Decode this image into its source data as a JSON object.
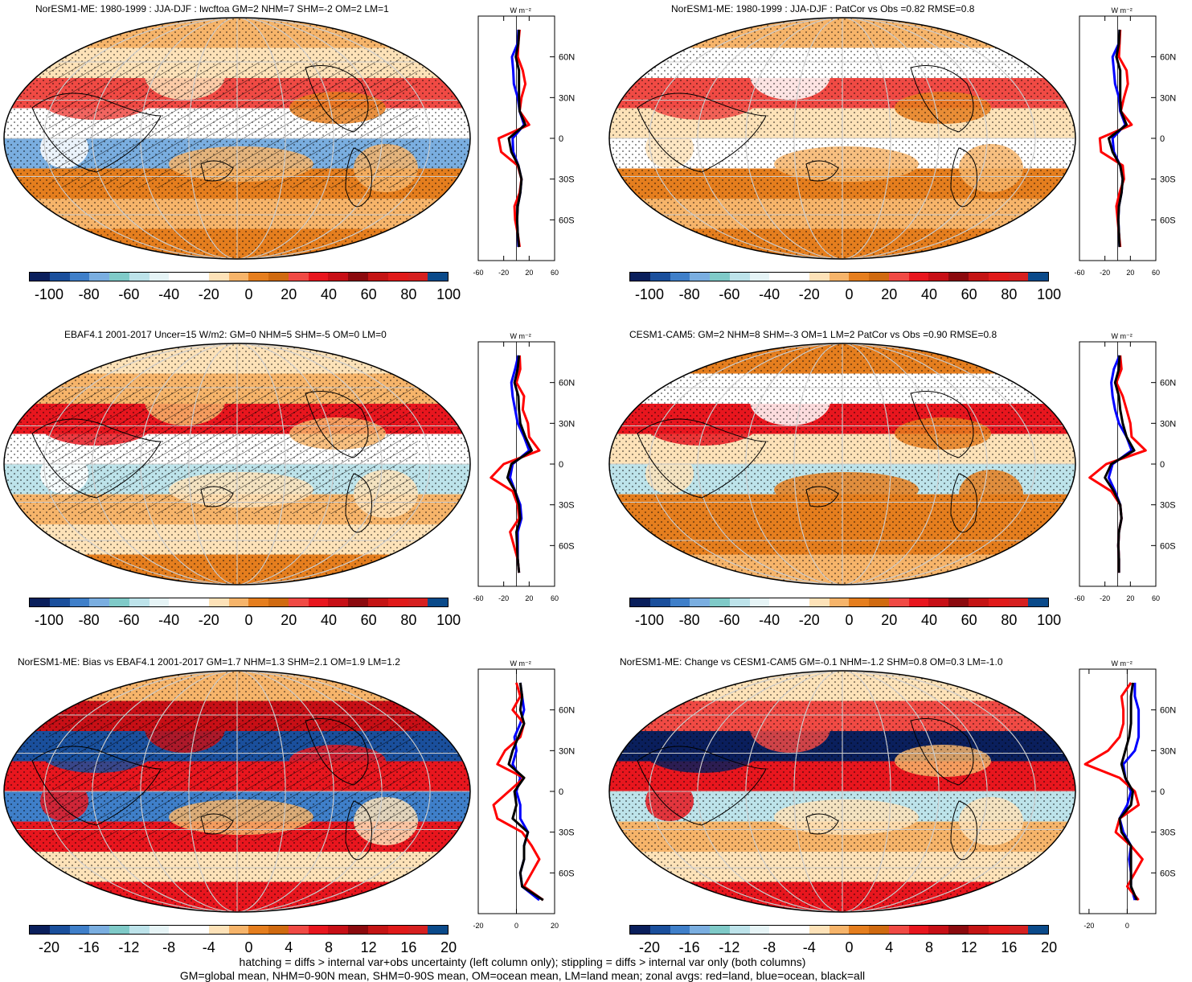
{
  "panels": [
    {
      "title": "NorESM1-ME: 1980-1999 : JJA-DJF : lwcftoa GM=2 NHM=7 SHM=-2 OM=2 LM=1",
      "cb_labels": [
        "-100",
        "-80",
        "-60",
        "-40",
        "-20",
        "0",
        "20",
        "40",
        "60",
        "80",
        "100"
      ],
      "hatch": true,
      "xticks": [
        "-60",
        "-20",
        "20",
        "60"
      ],
      "unit": "W m⁻²"
    },
    {
      "title": "NorESM1-ME: 1980-1999 : JJA-DJF : PatCor vs Obs =0.82 RMSE=0.8",
      "cb_labels": [
        "-100",
        "-80",
        "-60",
        "-40",
        "-20",
        "0",
        "20",
        "40",
        "60",
        "80",
        "100"
      ],
      "hatch": false,
      "xticks": [
        "-60",
        "-20",
        "20",
        "60"
      ],
      "unit": "W m⁻²"
    },
    {
      "title": "EBAF4.1 2001-2017 Uncer=15 W/m2: GM=0 NHM=5 SHM=-5 OM=0 LM=0",
      "cb_labels": [
        "-100",
        "-80",
        "-60",
        "-40",
        "-20",
        "0",
        "20",
        "40",
        "60",
        "80",
        "100"
      ],
      "hatch": true,
      "xticks": [
        "-60",
        "-20",
        "20",
        "60"
      ],
      "unit": "W m⁻²"
    },
    {
      "title": "CESM1-CAM5: GM=2 NHM=8 SHM=-3 OM=1 LM=2 PatCor vs Obs =0.90 RMSE=0.8",
      "cb_labels": [
        "-100",
        "-80",
        "-60",
        "-40",
        "-20",
        "0",
        "20",
        "40",
        "60",
        "80",
        "100"
      ],
      "hatch": false,
      "xticks": [
        "-60",
        "-20",
        "20",
        "60"
      ],
      "unit": "W m⁻²"
    },
    {
      "title": "NorESM1-ME: Bias vs EBAF4.1 2001-2017 GM=1.7 NHM=1.3 SHM=2.1 OM=1.9 LM=1.2",
      "cb_labels": [
        "-20",
        "-16",
        "-12",
        "-8",
        "-4",
        "0",
        "4",
        "8",
        "12",
        "16",
        "20"
      ],
      "hatch": true,
      "xticks": [
        "-20",
        "0",
        "20"
      ],
      "unit": "W m⁻²"
    },
    {
      "title": "NorESM1-ME: Change vs CESM1-CAM5 GM=-0.1 NHM=-1.2 SHM=0.8 OM=0.3 LM=-1.0",
      "cb_labels": [
        "-20",
        "-16",
        "-12",
        "-8",
        "-4",
        "0",
        "4",
        "8",
        "12",
        "16",
        "20"
      ],
      "hatch": false,
      "xticks": [
        "-20",
        "0"
      ],
      "unit": "W m⁻²"
    }
  ],
  "lat_labels": [
    "60N",
    "30N",
    "0",
    "30S",
    "60S"
  ],
  "palette": [
    "#0a1f5c",
    "#1a4f9c",
    "#3f7fc9",
    "#7aaee0",
    "#7fcac8",
    "#bde3ea",
    "#e6f4f6",
    "#ffffff",
    "#ffffff",
    "#fde2b8",
    "#f6b46a",
    "#e57e1e",
    "#d06a10",
    "#f04a44",
    "#e8161e",
    "#c70f16",
    "#8b0a0e",
    "#c41414",
    "#e01a1a",
    "#d62020",
    "#0a4a8a"
  ],
  "zonal_colors": {
    "land": "#ff0000",
    "ocean": "#0000ff",
    "all": "#000000"
  },
  "chart_data": [
    {
      "type": "heatmap",
      "title": "NorESM1-ME: 1980-1999 : JJA-DJF : lwcftoa GM=2 NHM=7 SHM=-2 OM=2 LM=1",
      "clim": [
        -100,
        100
      ],
      "zonal": {
        "lat": [
          80,
          70,
          60,
          50,
          40,
          30,
          20,
          10,
          0,
          -10,
          -20,
          -30,
          -40,
          -50,
          -60,
          -70,
          -80
        ],
        "land": [
          5,
          3,
          2,
          10,
          14,
          8,
          5,
          20,
          -28,
          -24,
          2,
          8,
          5,
          -3,
          -2,
          2,
          5
        ],
        "ocean": [
          3,
          2,
          -7,
          -5,
          -4,
          2,
          5,
          12,
          -6,
          -5,
          3,
          8,
          6,
          2,
          1,
          2,
          3
        ],
        "all": [
          4,
          3,
          -1,
          4,
          4,
          4,
          5,
          14,
          -12,
          -8,
          3,
          8,
          6,
          2,
          1,
          2,
          4
        ]
      },
      "xlim": [
        -60,
        60
      ]
    },
    {
      "type": "heatmap",
      "title": "NorESM1-ME: 1980-1999 : JJA-DJF : PatCor vs Obs =0.82 RMSE=0.8",
      "clim": [
        -100,
        100
      ],
      "zonal": {
        "lat": [
          80,
          70,
          60,
          50,
          40,
          30,
          20,
          10,
          0,
          -10,
          -20,
          -30,
          -40,
          -50,
          -60,
          -70,
          -80
        ],
        "land": [
          4,
          3,
          2,
          14,
          16,
          10,
          5,
          22,
          -28,
          -26,
          8,
          10,
          3,
          -2,
          0,
          2,
          4
        ],
        "ocean": [
          3,
          2,
          -8,
          -6,
          -4,
          2,
          4,
          12,
          -8,
          -6,
          4,
          8,
          6,
          2,
          1,
          2,
          3
        ],
        "all": [
          3,
          2,
          -2,
          4,
          4,
          4,
          5,
          14,
          -14,
          -8,
          4,
          8,
          6,
          2,
          1,
          2,
          3
        ]
      },
      "xlim": [
        -60,
        60
      ]
    },
    {
      "type": "heatmap",
      "title": "EBAF4.1 2001-2017 Uncer=15 W/m2: GM=0 NHM=5 SHM=-5 OM=0 LM=0",
      "clim": [
        -100,
        100
      ],
      "zonal": {
        "lat": [
          80,
          70,
          60,
          50,
          40,
          30,
          20,
          10,
          0,
          -10,
          -20,
          -30,
          -40,
          -50,
          -60,
          -70,
          -80
        ],
        "land": [
          5,
          6,
          0,
          12,
          10,
          18,
          20,
          36,
          -20,
          -40,
          -6,
          2,
          4,
          -10,
          -4,
          2,
          4
        ],
        "ocean": [
          3,
          -2,
          -8,
          -6,
          -2,
          2,
          12,
          20,
          -6,
          -10,
          -2,
          6,
          8,
          2,
          2,
          2,
          4
        ],
        "all": [
          4,
          2,
          -3,
          3,
          4,
          6,
          14,
          24,
          -8,
          -14,
          -2,
          4,
          6,
          0,
          1,
          2,
          4
        ]
      },
      "xlim": [
        -60,
        60
      ]
    },
    {
      "type": "heatmap",
      "title": "CESM1-CAM5: GM=2 NHM=8 SHM=-3 OM=1 LM=2 PatCor vs Obs =0.90 RMSE=0.8",
      "clim": [
        -100,
        100
      ],
      "zonal": {
        "lat": [
          80,
          70,
          60,
          50,
          40,
          30,
          20,
          10,
          0,
          -10,
          -20,
          -30,
          -40,
          -50,
          -60,
          -70,
          -80
        ],
        "land": [
          4,
          6,
          -2,
          8,
          14,
          20,
          22,
          44,
          -18,
          -44,
          -10,
          4,
          6,
          2,
          1,
          2,
          2
        ],
        "ocean": [
          3,
          -6,
          -10,
          -8,
          -4,
          2,
          14,
          22,
          -8,
          -14,
          -4,
          4,
          6,
          2,
          1,
          2,
          2
        ],
        "all": [
          3,
          2,
          -4,
          2,
          4,
          8,
          14,
          26,
          -10,
          -20,
          -6,
          4,
          6,
          2,
          1,
          2,
          2
        ]
      },
      "xlim": [
        -60,
        60
      ]
    },
    {
      "type": "heatmap",
      "title": "NorESM1-ME: Bias vs EBAF4.1 2001-2017 GM=1.7 NHM=1.3 SHM=2.1 OM=1.9 LM=1.2",
      "clim": [
        -20,
        20
      ],
      "zonal": {
        "lat": [
          80,
          70,
          60,
          50,
          40,
          30,
          20,
          10,
          0,
          -10,
          -20,
          -30,
          -40,
          -50,
          -60,
          -70,
          -80
        ],
        "land": [
          0,
          2,
          -2,
          4,
          2,
          -6,
          -10,
          4,
          -4,
          -12,
          -10,
          3,
          8,
          12,
          8,
          4,
          14
        ],
        "ocean": [
          2,
          3,
          4,
          2,
          -1,
          0,
          -2,
          2,
          0,
          2,
          2,
          6,
          4,
          4,
          2,
          3,
          12
        ],
        "all": [
          2,
          3,
          2,
          4,
          1,
          -2,
          -4,
          4,
          -1,
          0,
          -2,
          6,
          4,
          4,
          2,
          3,
          14
        ]
      },
      "xlim": [
        -20,
        20
      ]
    },
    {
      "type": "heatmap",
      "title": "NorESM1-ME: Change vs CESM1-CAM5 GM=-0.1 NHM=-1.2 SHM=0.8 OM=0.3 LM=-1.0",
      "clim": [
        -20,
        20
      ],
      "zonal": {
        "lat": [
          80,
          70,
          60,
          50,
          40,
          30,
          20,
          10,
          0,
          -10,
          -20,
          -30,
          -40,
          -50,
          -60,
          -70,
          -80
        ],
        "land": [
          2,
          -3,
          -2,
          -2,
          -4,
          -10,
          -22,
          -4,
          4,
          6,
          -4,
          -6,
          2,
          8,
          4,
          0,
          6
        ],
        "ocean": [
          4,
          4,
          6,
          6,
          6,
          4,
          -2,
          -1,
          2,
          0,
          -4,
          -2,
          2,
          1,
          2,
          2,
          4
        ],
        "all": [
          3,
          2,
          2,
          2,
          1,
          -1,
          -3,
          -1,
          3,
          2,
          -4,
          -3,
          2,
          2,
          2,
          2,
          5
        ]
      },
      "xlim": [
        -25,
        15
      ]
    }
  ],
  "footer": {
    "line1": "hatching = diffs > internal var+obs uncertainty (left column only); stippling = diffs > internal var only (both columns)",
    "line2": "GM=global mean, NHM=0-90N mean, SHM=0-90S mean, OM=ocean mean, LM=land mean; zonal avgs: red=land, blue=ocean, black=all"
  }
}
